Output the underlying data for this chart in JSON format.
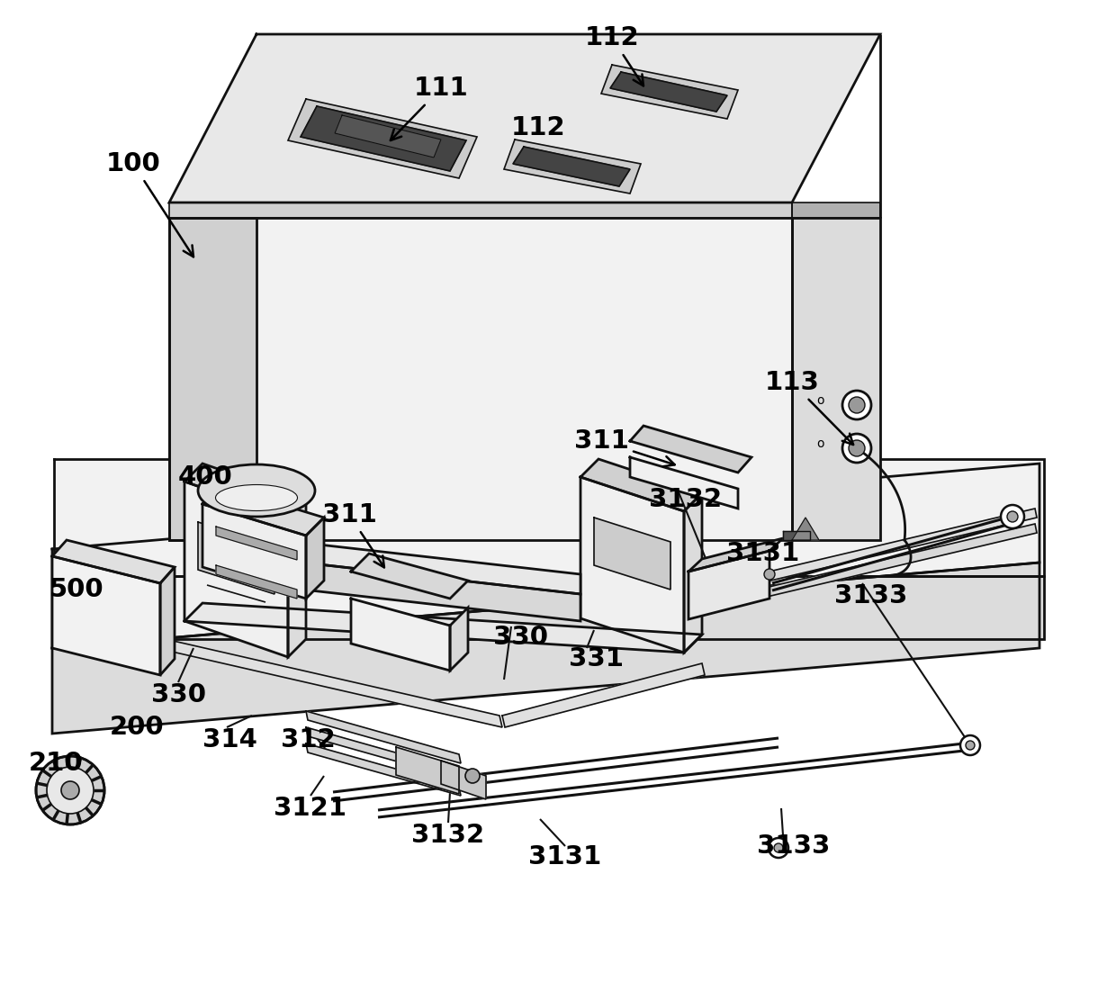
{
  "bg_color": "#ffffff",
  "lc": "#111111",
  "lw_main": 2.0,
  "lw_thin": 1.2,
  "lw_thick": 2.5,
  "font_size": 21,
  "font_weight": "bold",
  "gray_light": "#e8e8e8",
  "gray_mid": "#d0d0d0",
  "gray_dark": "#b0b0b0",
  "gray_face": "#f2f2f2",
  "gray_side": "#dcdcdc",
  "gray_right": "#c8c8c8"
}
